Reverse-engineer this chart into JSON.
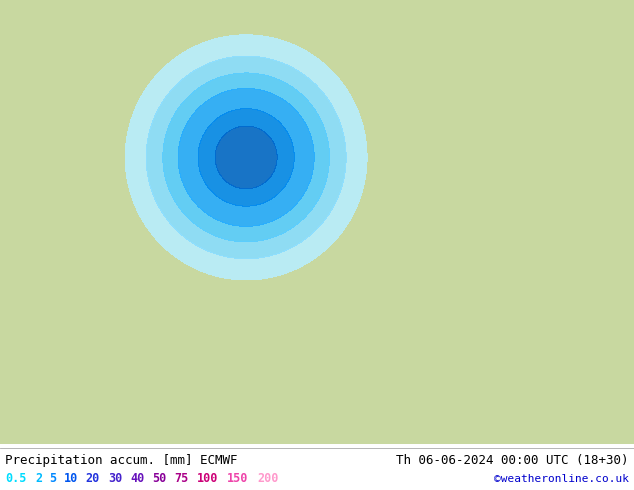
{
  "title_left": "Precipitation accum. [mm] ECMWF",
  "title_right": "Th 06-06-2024 00:00 UTC (18+30)",
  "credit": "©weatheronline.co.uk",
  "legend_values": [
    "0.5",
    "2",
    "5",
    "10",
    "20",
    "30",
    "40",
    "50",
    "75",
    "100",
    "150",
    "200"
  ],
  "legend_colors": [
    "#00eeff",
    "#00ccff",
    "#0099ff",
    "#0066ff",
    "#3355ff",
    "#6644ff",
    "#9922ee",
    "#bb00cc",
    "#dd00aa",
    "#ff0099",
    "#ff55bb",
    "#ff99dd"
  ],
  "land_color": "#c8d8a0",
  "sea_color": "#d8d8d8",
  "ocean_bg": "#e0e8e0",
  "border_color": "#888888",
  "isobar_red": "#dd0000",
  "isobar_blue": "#0000cc",
  "footer_bg": "#ffffff",
  "text_color": "#000000",
  "font_size_title": 9,
  "font_size_legend": 8.5,
  "font_size_credit": 8,
  "figsize": [
    6.34,
    4.9
  ],
  "dpi": 100,
  "extent": [
    -35,
    50,
    27,
    75
  ],
  "precip_levels": [
    0.5,
    2,
    5,
    10,
    20,
    30,
    40,
    50,
    75,
    100,
    150,
    200,
    500
  ],
  "precip_colors": [
    "#b8eeff",
    "#88ddff",
    "#55ccff",
    "#22aaff",
    "#0088ee",
    "#0066cc",
    "#2244bb",
    "#442299",
    "#770088",
    "#aa0077",
    "#dd3399",
    "#ff88cc"
  ],
  "pressure_levels": [
    992,
    996,
    1000,
    1004,
    1008,
    1012,
    1016,
    1020,
    1024,
    1028,
    1032
  ],
  "pressure_blue_max": 1008,
  "pressure_red_min": 1012
}
